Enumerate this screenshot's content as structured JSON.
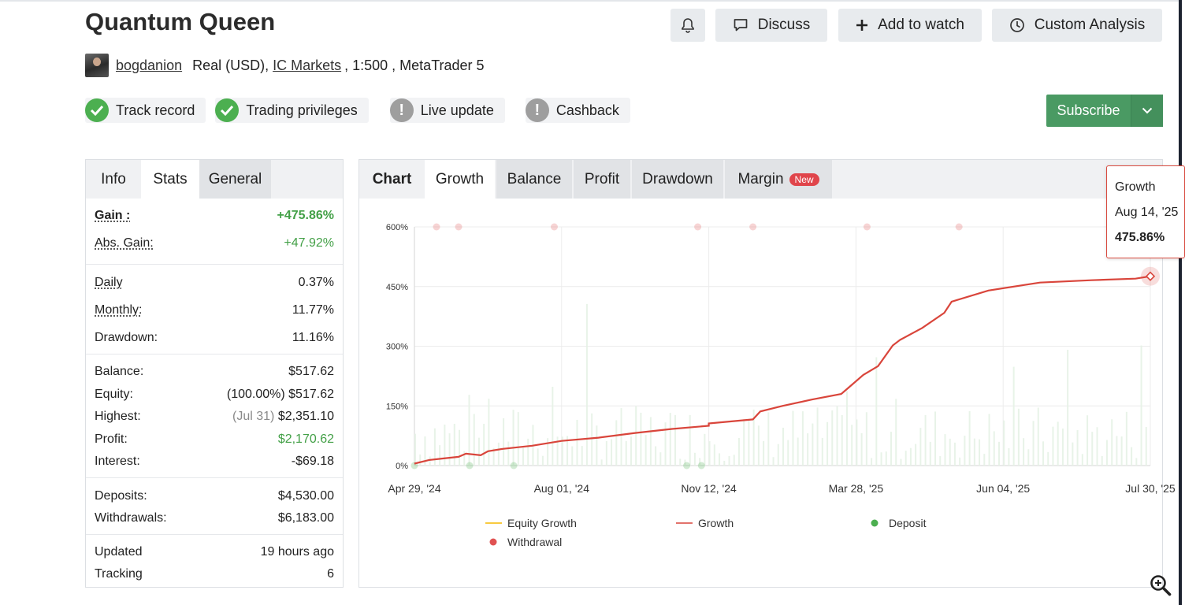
{
  "header": {
    "title": "Quantum Queen",
    "buttons": {
      "discuss": "Discuss",
      "watch": "Add to watch",
      "analysis": "Custom Analysis"
    }
  },
  "meta": {
    "author": "bogdanion",
    "account_type": "Real (USD),",
    "broker": "IC Markets",
    "leverage_platform": ", 1:500 , MetaTrader 5"
  },
  "badges": [
    {
      "label": "Track record",
      "status": "ok"
    },
    {
      "label": "Trading privileges",
      "status": "ok"
    },
    {
      "label": "Live update",
      "status": "warn"
    },
    {
      "label": "Cashback",
      "status": "warn"
    }
  ],
  "subscribe": {
    "label": "Subscribe"
  },
  "left_tabs": [
    "Info",
    "Stats",
    "General"
  ],
  "stats": {
    "gain": {
      "label": "Gain :",
      "value": "+475.86%"
    },
    "abs_gain": {
      "label": "Abs. Gain:",
      "value": "+47.92%"
    },
    "daily": {
      "label": "Daily",
      "value": "0.37%"
    },
    "monthly": {
      "label": "Monthly:",
      "value": "11.77%"
    },
    "drawdown": {
      "label": "Drawdown:",
      "value": "11.16%"
    },
    "balance": {
      "label": "Balance:",
      "value": "$517.62"
    },
    "equity": {
      "label": "Equity:",
      "value": "(100.00%) $517.62"
    },
    "highest": {
      "label": "Highest:",
      "note": "(Jul 31)",
      "value": "$2,351.10"
    },
    "profit": {
      "label": "Profit:",
      "value": "$2,170.62"
    },
    "interest": {
      "label": "Interest:",
      "value": "-$69.18"
    },
    "deposits": {
      "label": "Deposits:",
      "value": "$4,530.00"
    },
    "withdrawals": {
      "label": "Withdrawals:",
      "value": "$6,183.00"
    },
    "updated": {
      "label": "Updated",
      "value": "19 hours ago"
    },
    "tracking": {
      "label": "Tracking",
      "value": "6"
    }
  },
  "chart_tabs": {
    "chart": "Chart",
    "growth": "Growth",
    "balance": "Balance",
    "profit": "Profit",
    "drawdown": "Drawdown",
    "margin": "Margin",
    "new_badge": "New"
  },
  "tooltip": {
    "title": "Growth",
    "date": "Aug 14, '25",
    "value": "475.86%"
  },
  "colors": {
    "growth": "#d9453b",
    "deposit": "#4caf50",
    "withdrawal": "#e05252",
    "equity": "#f5b800",
    "subscribe": "#4a9a63"
  },
  "chart_data": {
    "type": "line",
    "x_tick_labels": [
      "Apr 29, '24",
      "Aug 01, '24",
      "Nov 12, '24",
      "Mar 28, '25",
      "Jun 04, '25",
      "Jul 30, '25"
    ],
    "y_tick_labels": [
      "0%",
      "150%",
      "300%",
      "450%",
      "600%"
    ],
    "ylim": [
      0,
      600
    ],
    "grid": true,
    "legend_position": "bottom",
    "legend": [
      "Equity Growth",
      "Growth",
      "Deposit",
      "Withdrawal"
    ],
    "series": [
      {
        "name": "Growth",
        "x": [
          0.0,
          0.02,
          0.04,
          0.06,
          0.07,
          0.09,
          0.1,
          0.12,
          0.16,
          0.2,
          0.25,
          0.3,
          0.35,
          0.4,
          0.4,
          0.46,
          0.47,
          0.5,
          0.54,
          0.58,
          0.59,
          0.61,
          0.63,
          0.65,
          0.66,
          0.69,
          0.72,
          0.73,
          0.78,
          0.85,
          0.92,
          0.98,
          1.0
        ],
        "values": [
          5,
          14,
          18,
          22,
          30,
          26,
          36,
          42,
          50,
          62,
          70,
          82,
          92,
          100,
          106,
          116,
          136,
          150,
          166,
          180,
          196,
          228,
          250,
          302,
          316,
          346,
          384,
          412,
          440,
          460,
          466,
          470,
          475.86
        ]
      }
    ],
    "deposits_x": [
      0.0,
      0.075,
      0.135,
      0.37,
      0.39
    ],
    "withdrawals_x": [
      0.03,
      0.06,
      0.19,
      0.385,
      0.46,
      0.615,
      0.74
    ]
  }
}
